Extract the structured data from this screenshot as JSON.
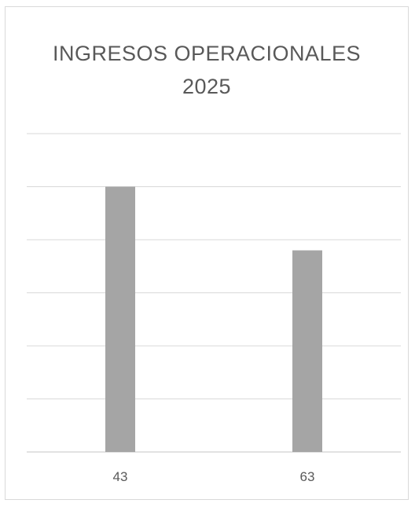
{
  "chart_data": {
    "type": "bar",
    "title_lines": [
      "INGRESOS OPERACIONALES",
      "2025"
    ],
    "categories": [
      "43",
      "63"
    ],
    "values": [
      5,
      3.8
    ],
    "ylim": [
      0,
      6
    ],
    "grid": true,
    "legend": "none",
    "colors": {
      "bar": "#a5a5a5",
      "grid": "#d9d9d9",
      "axis": "#d9d9d9",
      "text": "#595959"
    }
  }
}
